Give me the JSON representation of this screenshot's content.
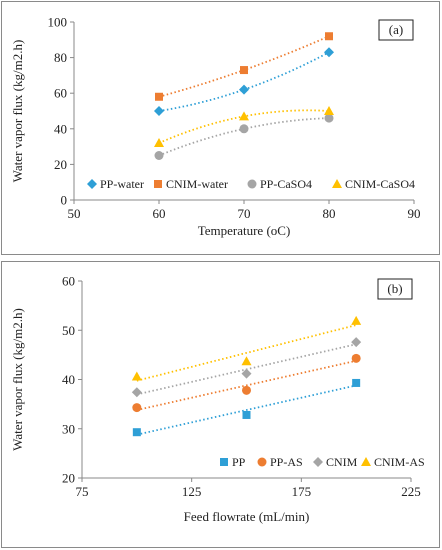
{
  "chart_data": [
    {
      "type": "scatter",
      "panel_label": "(a)",
      "xlabel": "Temperature (oC)",
      "ylabel": "Water vapor flux (kg/m2.h)",
      "xlim": [
        50,
        90
      ],
      "ylim": [
        0,
        100
      ],
      "xticks": [
        50,
        60,
        70,
        80,
        90
      ],
      "yticks": [
        0,
        20,
        40,
        60,
        80,
        100
      ],
      "grid": false,
      "legend_placement": "bottom",
      "trendline": "polynomial, dotted",
      "series": [
        {
          "name": "PP-water",
          "marker": "diamond",
          "color": "#2E9FD6",
          "x": [
            60,
            70,
            80
          ],
          "y": [
            50,
            62,
            83
          ]
        },
        {
          "name": "CNIM-water",
          "marker": "square",
          "color": "#ED7D31",
          "x": [
            60,
            70,
            80
          ],
          "y": [
            58,
            73,
            92
          ]
        },
        {
          "name": "PP-CaSO4",
          "marker": "circle",
          "color": "#A5A5A5",
          "x": [
            60,
            70,
            80
          ],
          "y": [
            25,
            40,
            46
          ]
        },
        {
          "name": "CNIM-CaSO4",
          "marker": "triangle",
          "color": "#FFC000",
          "x": [
            60,
            70,
            80
          ],
          "y": [
            32,
            47,
            50
          ]
        }
      ]
    },
    {
      "type": "scatter",
      "panel_label": "(b)",
      "xlabel": "Feed flowrate (mL/min)",
      "ylabel": "Water vapor flux (kg/m2.h)",
      "xlim": [
        75,
        225
      ],
      "ylim": [
        20,
        60
      ],
      "xticks": [
        75,
        125,
        175,
        225
      ],
      "yticks": [
        20,
        30,
        40,
        50,
        60
      ],
      "grid": false,
      "legend_placement": "bottom-right",
      "trendline": "linear, dotted",
      "series": [
        {
          "name": "PP",
          "marker": "square",
          "color": "#2E9FD6",
          "x": [
            100,
            150,
            200
          ],
          "y": [
            29.3,
            32.8,
            39.3
          ]
        },
        {
          "name": "PP-AS",
          "marker": "circle",
          "color": "#ED7D31",
          "x": [
            100,
            150,
            200
          ],
          "y": [
            34.3,
            37.8,
            44.3
          ]
        },
        {
          "name": "CNIM",
          "marker": "diamond",
          "color": "#A5A5A5",
          "x": [
            100,
            150,
            200
          ],
          "y": [
            37.4,
            41.2,
            47.6
          ]
        },
        {
          "name": "CNIM-AS",
          "marker": "triangle",
          "color": "#FFC000",
          "x": [
            100,
            150,
            200
          ],
          "y": [
            40.6,
            43.7,
            51.9
          ]
        }
      ]
    }
  ]
}
